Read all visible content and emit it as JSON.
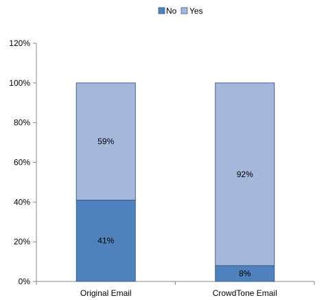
{
  "chart_data": {
    "type": "bar",
    "stacked": true,
    "categories": [
      "Original Email",
      "CrowdTone Email"
    ],
    "series": [
      {
        "name": "No",
        "values": [
          41,
          8
        ],
        "labels": [
          "41%",
          "8%"
        ],
        "color": "#4f81bd"
      },
      {
        "name": "Yes",
        "values": [
          59,
          92
        ],
        "labels": [
          "59%",
          "92%"
        ],
        "color": "#a5b8db"
      }
    ],
    "ylim": [
      0,
      120
    ],
    "yticks": [
      0,
      20,
      40,
      60,
      80,
      100,
      120
    ],
    "ytick_labels": [
      "0%",
      "20%",
      "40%",
      "60%",
      "80%",
      "100%",
      "120%"
    ],
    "legend_position": "top",
    "grid": false,
    "title": "",
    "xlabel": "",
    "ylabel": "",
    "bar_border_color": "#3a5f8f",
    "axis_color": "#868686"
  }
}
